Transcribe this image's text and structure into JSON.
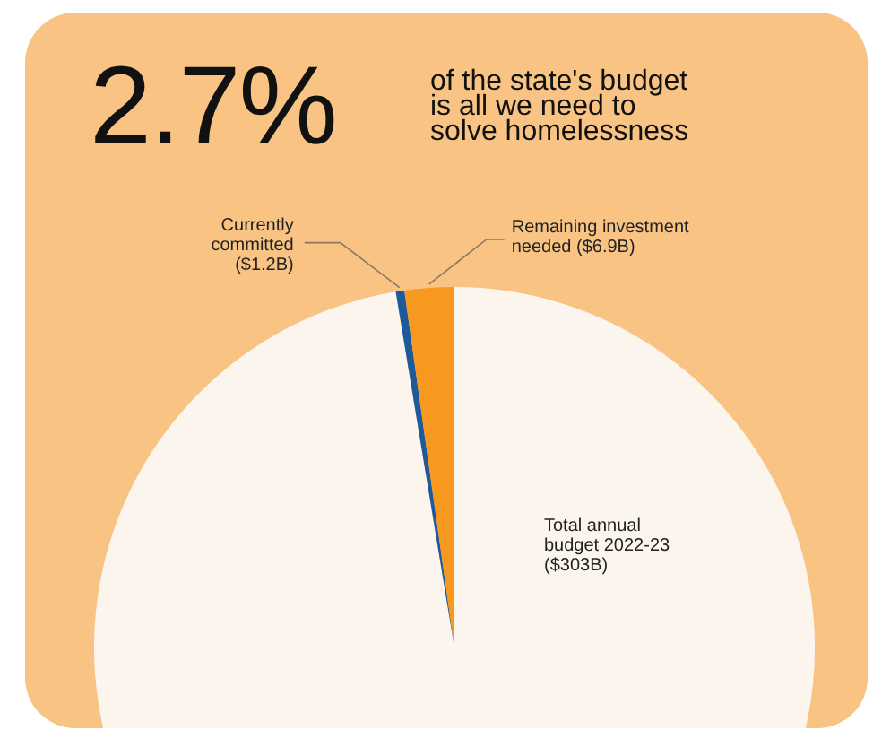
{
  "chart_data": {
    "type": "pie",
    "title": "2.7%",
    "subtitle": "of the state's budget is all we need to solve homelessness",
    "categories": [
      "Total annual budget 2022-23 ($303B)",
      "Currently committed ($1.2B)",
      "Remaining investment needed ($6.9B)"
    ],
    "values": [
      303,
      1.2,
      6.9
    ],
    "colors": [
      "#fbf5ee",
      "#1d5a9c",
      "#f7981f"
    ],
    "legend": false
  }
}
